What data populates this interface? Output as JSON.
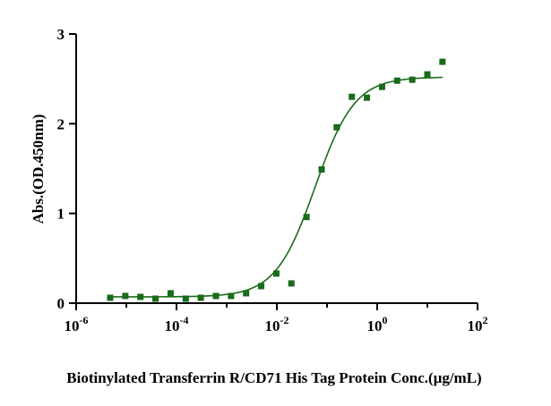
{
  "chart_data": {
    "type": "scatter",
    "xlabel": "Biotinylated Transferrin R/CD71 His Tag Protein Conc.(μg/mL)",
    "ylabel": "Abs.(OD.450nm)",
    "x_scale": "log10",
    "xlim": [
      1e-06,
      100
    ],
    "ylim": [
      0,
      3
    ],
    "x_ticks": [
      {
        "base": "10",
        "exp": "-6",
        "value": 1e-06
      },
      {
        "base": "10",
        "exp": "-4",
        "value": 0.0001
      },
      {
        "base": "10",
        "exp": "-2",
        "value": 0.01
      },
      {
        "base": "10",
        "exp": "0",
        "value": 1
      },
      {
        "base": "10",
        "exp": "2",
        "value": 100
      }
    ],
    "y_ticks": [
      {
        "label": "0",
        "value": 0
      },
      {
        "label": "1",
        "value": 1
      },
      {
        "label": "2",
        "value": 2
      },
      {
        "label": "3",
        "value": 3
      }
    ],
    "grid": false,
    "color": "#1a6b1a",
    "series": [
      {
        "points": [
          {
            "x": 4.77e-06,
            "y": 0.06
          },
          {
            "x": 9.54e-06,
            "y": 0.08
          },
          {
            "x": 1.91e-05,
            "y": 0.07
          },
          {
            "x": 3.81e-05,
            "y": 0.05
          },
          {
            "x": 7.63e-05,
            "y": 0.11
          },
          {
            "x": 0.000153,
            "y": 0.05
          },
          {
            "x": 0.000305,
            "y": 0.06
          },
          {
            "x": 0.00061,
            "y": 0.08
          },
          {
            "x": 0.00122,
            "y": 0.08
          },
          {
            "x": 0.00244,
            "y": 0.11
          },
          {
            "x": 0.00488,
            "y": 0.19
          },
          {
            "x": 0.00977,
            "y": 0.33
          },
          {
            "x": 0.0195,
            "y": 0.22
          },
          {
            "x": 0.0391,
            "y": 0.96
          },
          {
            "x": 0.0781,
            "y": 1.49
          },
          {
            "x": 0.156,
            "y": 1.96
          },
          {
            "x": 0.3125,
            "y": 2.3
          },
          {
            "x": 0.625,
            "y": 2.29
          },
          {
            "x": 1.25,
            "y": 2.41
          },
          {
            "x": 2.5,
            "y": 2.48
          },
          {
            "x": 5.0,
            "y": 2.49
          },
          {
            "x": 10.0,
            "y": 2.55
          },
          {
            "x": 20.0,
            "y": 2.69
          }
        ]
      }
    ],
    "fit_curve": {
      "model": "4PL",
      "bottom": 0.07,
      "top": 2.52,
      "ec50": 0.058,
      "hill": 1.1,
      "x_range": [
        4.77e-06,
        20.0
      ]
    }
  }
}
